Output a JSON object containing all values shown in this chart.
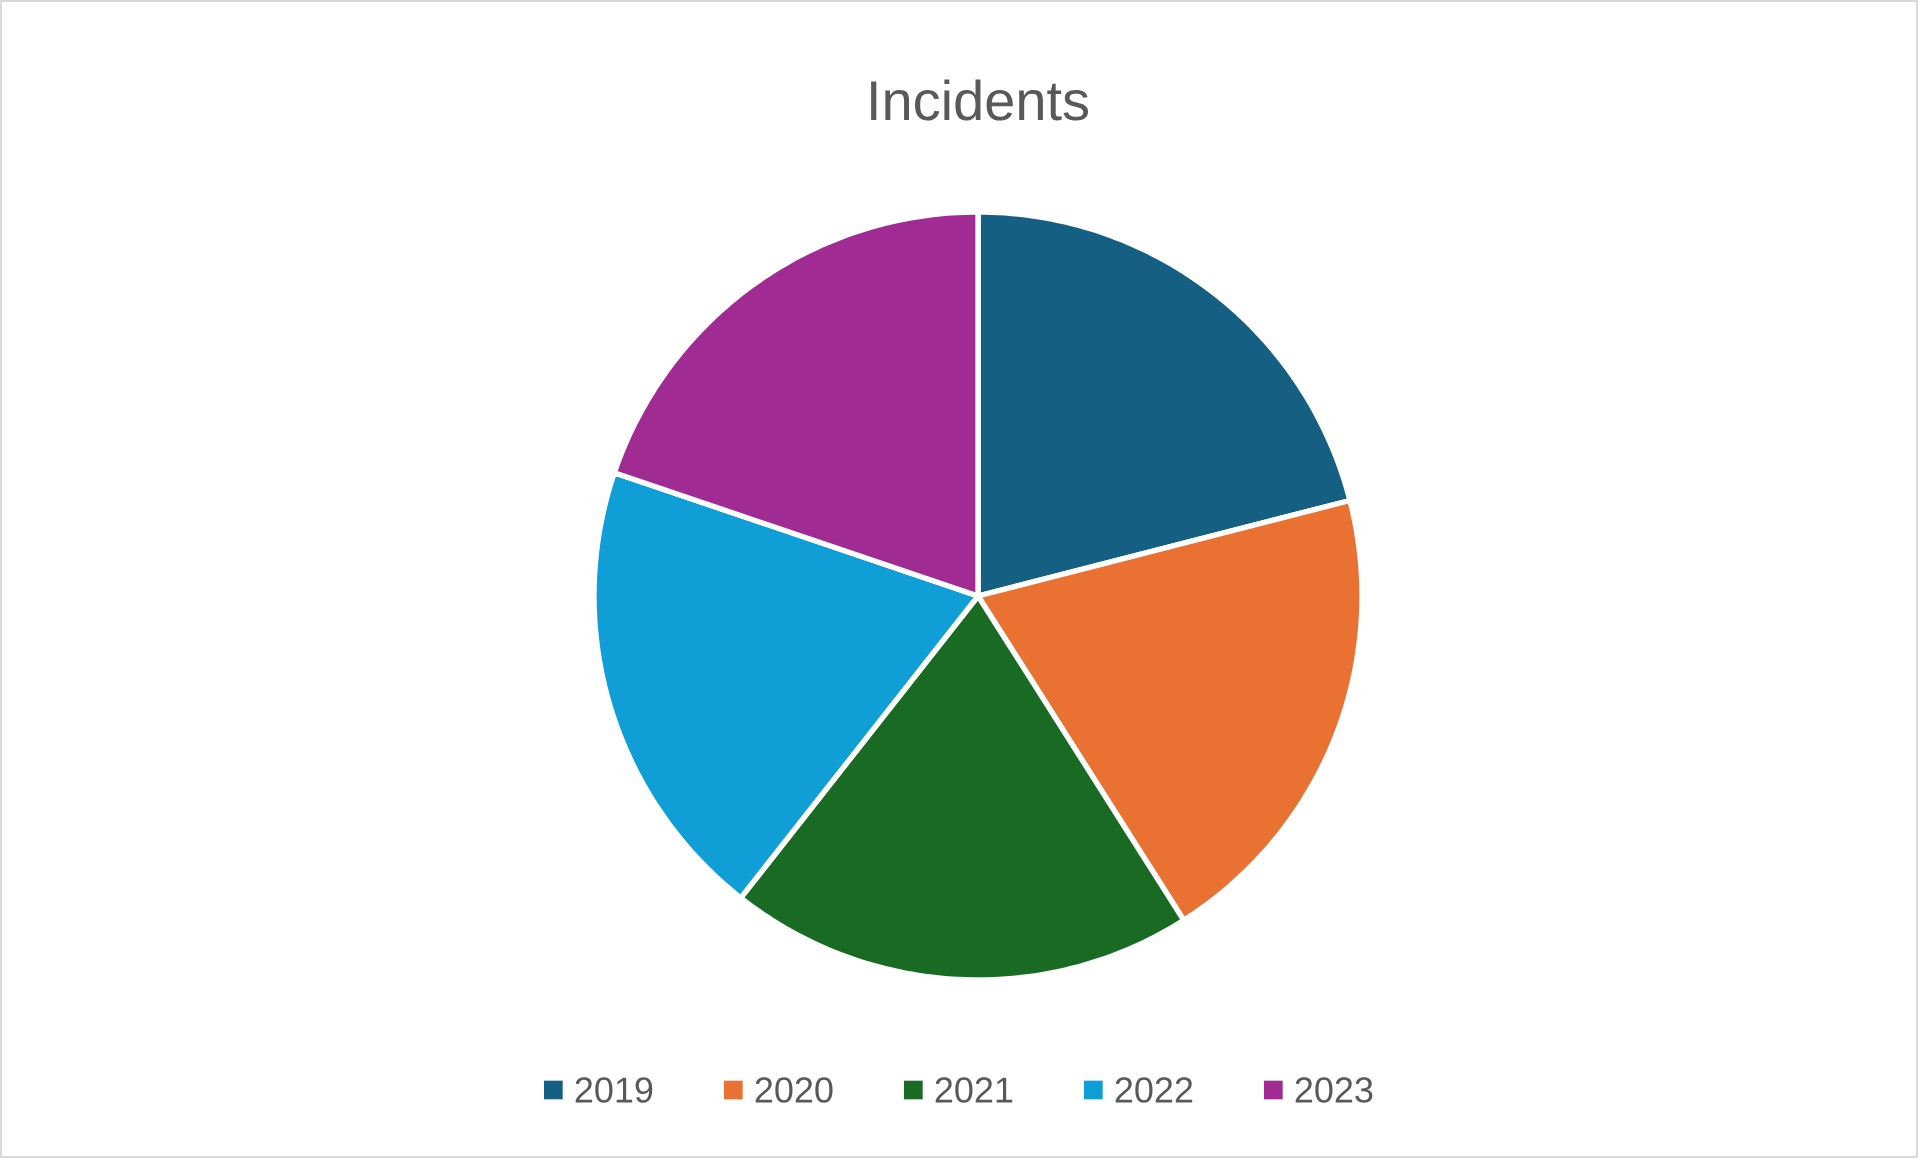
{
  "chart_data": {
    "type": "pie",
    "title": "Incidents",
    "categories": [
      "2019",
      "2020",
      "2021",
      "2022",
      "2023"
    ],
    "values": [
      21,
      20,
      19.6,
      19.6,
      19.8
    ],
    "colors": [
      "#156082",
      "#e97132",
      "#196b24",
      "#0f9ed5",
      "#a02b93"
    ],
    "legend": "bottom"
  }
}
